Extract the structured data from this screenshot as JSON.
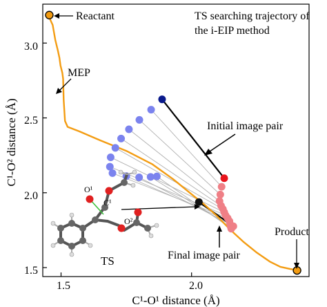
{
  "chart_data": {
    "type": "scatter",
    "title_lines": [
      "TS searching trajectory of",
      "the i-EIP method"
    ],
    "xlabel": "C¹-O¹ distance (Å)",
    "ylabel": "C¹-O² distance (Å)",
    "xlim": [
      1.43,
      2.45
    ],
    "ylim": [
      1.44,
      3.26
    ],
    "x_ticks": [
      1.5,
      2.0
    ],
    "x_tick_labels": [
      "1.5",
      "2.0"
    ],
    "y_ticks": [
      1.5,
      2.0,
      2.5,
      3.0
    ],
    "y_tick_labels": [
      "1.5",
      "2.0",
      "2.5",
      "3.0"
    ],
    "grid": false,
    "colors": {
      "mep": "#f39c12",
      "reactant_side": "#7b83ee",
      "product_side": "#ef7f86",
      "pair_line": "#b0b0b0",
      "highlight_pair": "#000000",
      "initial_blue": "#0a1a8c",
      "initial_red": "#e8141c",
      "endpoint_fill": "#f39c12"
    },
    "series": [
      {
        "name": "MEP",
        "kind": "line",
        "points": [
          [
            1.45,
            3.19
          ],
          [
            1.468,
            3.12
          ],
          [
            1.478,
            3.02
          ],
          [
            1.488,
            2.95
          ],
          [
            1.494,
            2.9
          ],
          [
            1.498,
            2.85
          ],
          [
            1.505,
            2.8
          ],
          [
            1.508,
            2.76
          ],
          [
            1.51,
            2.62
          ],
          [
            1.515,
            2.48
          ],
          [
            1.525,
            2.44
          ],
          [
            1.57,
            2.41
          ],
          [
            1.65,
            2.35
          ],
          [
            1.75,
            2.28
          ],
          [
            1.85,
            2.19
          ],
          [
            1.93,
            2.09
          ],
          [
            2.0,
            1.99
          ],
          [
            2.05,
            1.92
          ],
          [
            2.1,
            1.84
          ],
          [
            2.15,
            1.75
          ],
          [
            2.2,
            1.67
          ],
          [
            2.25,
            1.6
          ],
          [
            2.3,
            1.54
          ],
          [
            2.34,
            1.505
          ],
          [
            2.38,
            1.49
          ],
          [
            2.42,
            1.48
          ]
        ]
      },
      {
        "name": "image pairs",
        "kind": "pairs",
        "pairs": [
          {
            "blue": [
              1.887,
              2.624
            ],
            "red": [
              2.125,
              2.097
            ],
            "role": "initial"
          },
          {
            "blue": [
              1.845,
              2.555
            ],
            "red": [
              2.115,
              2.04
            ]
          },
          {
            "blue": [
              1.8,
              2.487
            ],
            "red": [
              2.11,
              1.988
            ]
          },
          {
            "blue": [
              1.76,
              2.424
            ],
            "red": [
              2.107,
              1.944
            ]
          },
          {
            "blue": [
              1.73,
              2.362
            ],
            "red": [
              2.113,
              1.913
            ]
          },
          {
            "blue": [
              1.708,
              2.3
            ],
            "red": [
              2.12,
              1.891
            ]
          },
          {
            "blue": [
              1.69,
              2.237
            ],
            "red": [
              2.125,
              1.87
            ]
          },
          {
            "blue": [
              1.687,
              2.174
            ],
            "red": [
              2.13,
              1.85
            ]
          },
          {
            "blue": [
              1.697,
              2.131
            ],
            "red": [
              2.138,
              1.831
            ]
          },
          {
            "blue": [
              1.75,
              2.111
            ],
            "red": [
              2.145,
              1.81
            ]
          },
          {
            "blue": [
              1.799,
              2.103
            ],
            "red": [
              2.148,
              1.789
            ]
          },
          {
            "blue": [
              1.843,
              2.106
            ],
            "red": [
              2.15,
              1.772
            ]
          },
          {
            "blue": [
              1.867,
              2.109
            ],
            "red": [
              2.152,
              1.76
            ]
          },
          {
            "blue": [
              2.028,
              1.938
            ],
            "red": [
              2.16,
              1.776
            ],
            "role": "final"
          }
        ]
      },
      {
        "name": "endpoints",
        "kind": "markers",
        "points": [
          [
            1.455,
            3.187
          ],
          [
            2.404,
            1.481
          ]
        ]
      }
    ],
    "annotations": {
      "reactant": "Reactant",
      "product": "Product",
      "mep": "MEP",
      "initial_pair": "Initial image pair",
      "final_pair": "Final image pair",
      "ts": "TS",
      "o1": "O¹",
      "c1": "C¹",
      "o2": "O²"
    }
  }
}
